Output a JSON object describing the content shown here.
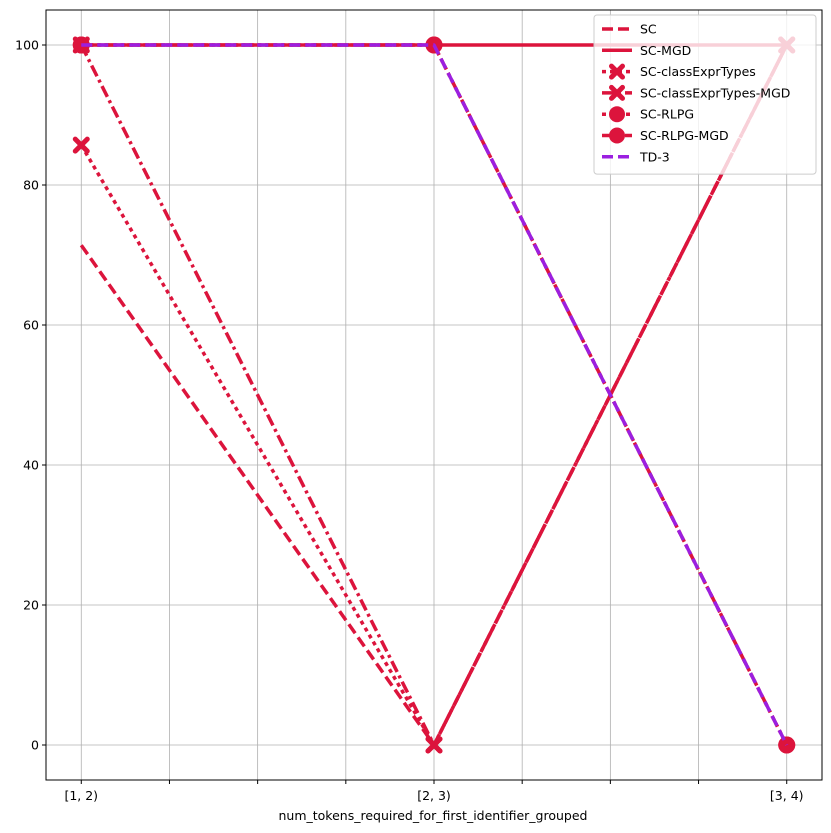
{
  "chart_data": {
    "type": "line",
    "title": "",
    "xlabel": "num_tokens_required_for_first_identifier_grouped",
    "ylabel": "",
    "categories": [
      "[1, 2)",
      "[2, 3)",
      "[3, 4)"
    ],
    "ylim": [
      -5,
      105
    ],
    "y_ticks": [
      0,
      20,
      40,
      60,
      80,
      100
    ],
    "grid": true,
    "legend_position": "top-right",
    "series": [
      {
        "name": "SC",
        "values": [
          71.4,
          0,
          100
        ],
        "color": "#dc143c",
        "style": "dashed",
        "marker": "none"
      },
      {
        "name": "SC-MGD",
        "values": [
          100,
          100,
          100
        ],
        "color": "#dc143c",
        "style": "solid",
        "marker": "none"
      },
      {
        "name": "SC-classExprTypes",
        "values": [
          85.7,
          0,
          100
        ],
        "color": "#dc143c",
        "style": "dotted",
        "marker": "x"
      },
      {
        "name": "SC-classExprTypes-MGD",
        "values": [
          100,
          0,
          100
        ],
        "color": "#dc143c",
        "style": "dashdot",
        "marker": "x"
      },
      {
        "name": "SC-RLPG",
        "values": [
          100,
          100,
          0
        ],
        "color": "#dc143c",
        "style": "dotted",
        "marker": "circle"
      },
      {
        "name": "SC-RLPG-MGD",
        "values": [
          100,
          100,
          0
        ],
        "color": "#dc143c",
        "style": "dashdot",
        "marker": "circle"
      },
      {
        "name": "TD-3",
        "values": [
          100,
          100,
          0
        ],
        "color": "#9b1fe0",
        "style": "dashed",
        "marker": "none"
      }
    ]
  }
}
